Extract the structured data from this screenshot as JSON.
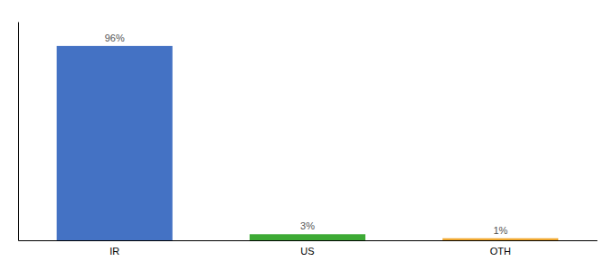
{
  "chart_data": {
    "type": "bar",
    "categories": [
      "IR",
      "US",
      "OTH"
    ],
    "values": [
      96,
      3,
      1
    ],
    "value_labels": [
      "96%",
      "3%",
      "1%"
    ],
    "colors": [
      "#4472C4",
      "#3DAA35",
      "#F0A830"
    ],
    "ylim": [
      0,
      108
    ],
    "data_labels": true,
    "tick_labels": "x",
    "grid": false
  }
}
